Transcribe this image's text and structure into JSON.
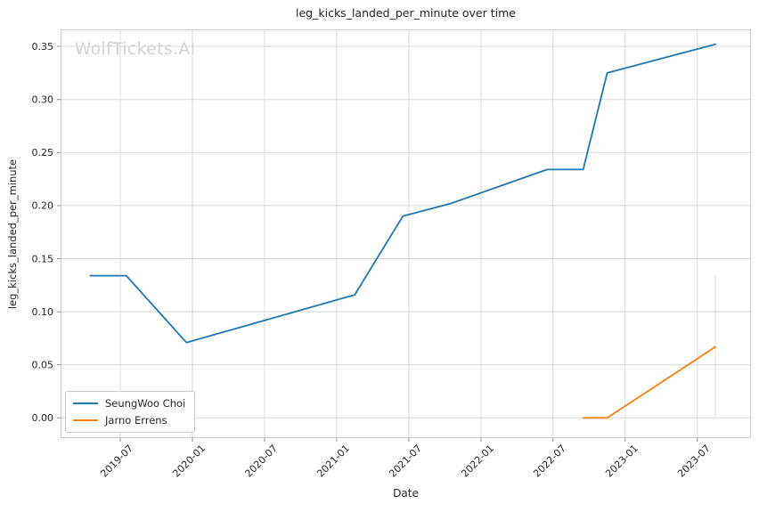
{
  "watermark": {
    "text": "WolfTickets.AI"
  },
  "chart_data": {
    "type": "line",
    "title": "leg_kicks_landed_per_minute over time",
    "xlabel": "Date",
    "ylabel": "leg_kicks_landed_per_minute",
    "grid": true,
    "legend_position": "lower left",
    "xlim": [
      2019.086,
      2023.872
    ],
    "ylim": [
      -0.019,
      0.366
    ],
    "x_ticks": [
      {
        "label": "2019-07"
      },
      {
        "label": "2020-01"
      },
      {
        "label": "2020-07"
      },
      {
        "label": "2021-01"
      },
      {
        "label": "2021-07"
      },
      {
        "label": "2022-01"
      },
      {
        "label": "2022-07"
      },
      {
        "label": "2023-01"
      },
      {
        "label": "2023-07"
      }
    ],
    "y_ticks": [
      {
        "value": 0.0,
        "label": "0.00"
      },
      {
        "value": 0.05,
        "label": "0.05"
      },
      {
        "value": 0.1,
        "label": "0.10"
      },
      {
        "value": 0.15,
        "label": "0.15"
      },
      {
        "value": 0.2,
        "label": "0.20"
      },
      {
        "value": 0.25,
        "label": "0.25"
      },
      {
        "value": 0.3,
        "label": "0.30"
      },
      {
        "value": 0.35,
        "label": "0.35"
      }
    ],
    "colors": {
      "grid": "#d9d9d9",
      "spine": "#cccccc",
      "tick": "#8f8f8f",
      "text": "#262626"
    },
    "series": [
      {
        "name": "SeungWoo Choi",
        "color": "#1f77b4",
        "points": [
          {
            "date": "2019-04",
            "y": 0.134
          },
          {
            "date": "2019-07",
            "y": 0.134
          },
          {
            "date": "2019-12",
            "y": 0.071
          },
          {
            "date": "2021-02",
            "y": 0.116
          },
          {
            "date": "2021-06",
            "y": 0.19
          },
          {
            "date": "2021-10",
            "y": 0.202
          },
          {
            "date": "2022-06",
            "y": 0.234
          },
          {
            "date": "2022-09",
            "y": 0.234
          },
          {
            "date": "2022-11",
            "y": 0.325
          },
          {
            "date": "2023-08",
            "y": 0.352
          }
        ],
        "error_bars": []
      },
      {
        "name": "Jarno Errens",
        "color": "#ff7f0e",
        "points": [
          {
            "date": "2022-09",
            "y": 0.0
          },
          {
            "date": "2022-11",
            "y": 0.0
          },
          {
            "date": "2023-08",
            "y": 0.067
          }
        ],
        "error_bars": [
          {
            "date": "2023-08",
            "y_low": 0.0,
            "y_high": 0.134
          }
        ]
      }
    ]
  }
}
